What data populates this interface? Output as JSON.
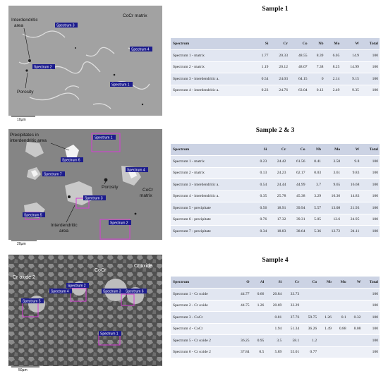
{
  "samples": [
    {
      "title": "Sample 1",
      "columns": [
        "Spectrum",
        "Si",
        "Cr",
        "Co",
        "Nb",
        "Mo",
        "W",
        "Total"
      ],
      "rows": [
        [
          "Spectrum 1 - matrix",
          "1.77",
          "20.33",
          "48.55",
          "8.39",
          "6.05",
          "14.9",
          "100"
        ],
        [
          "Spectrum 2 - matrix",
          "1.19",
          "20.12",
          "48.07",
          "7.38",
          "8.25",
          "14.99",
          "100"
        ],
        [
          "Spectrum 3 - interdendritic a.",
          "0.54",
          "24.03",
          "64.15",
          "0",
          "2.14",
          "9.15",
          "100"
        ],
        [
          "Spectrum 4 - interdendritic a.",
          "0.23",
          "24.76",
          "63.04",
          "0.12",
          "2.49",
          "9.35",
          "100"
        ]
      ],
      "image": {
        "labels": [
          "Interdendritic",
          "area",
          "Porosity",
          "CoCr matrix"
        ],
        "spectra": [
          "Spectrum 3",
          "Spectrum 2",
          "Spectrum 4",
          "Spectrum 1"
        ],
        "scale": "10µm"
      }
    },
    {
      "title": "Sample 2 & 3",
      "columns": [
        "Spectrum",
        "Si",
        "Cr",
        "Co",
        "Nb",
        "Mo",
        "W",
        "Total"
      ],
      "rows": [
        [
          "Spectrum 1 - matrix",
          "0.23",
          "24.42",
          "61.56",
          "0.41",
          "3.58",
          "9.8",
          "100"
        ],
        [
          "Spectrum 2 - matrix",
          "0.13",
          "24.23",
          "62.17",
          "0.03",
          "3.61",
          "9.83",
          "100"
        ],
        [
          "Spectrum 3 - interdendritic a.",
          "0.54",
          "24.44",
          "44.99",
          "3.7",
          "9.65",
          "16.68",
          "100"
        ],
        [
          "Spectrum 4 - interdendritic a.",
          "0.35",
          "25.78",
          "45.38",
          "3.29",
          "10.36",
          "14.83",
          "100"
        ],
        [
          "Spectrum 5 - precipitate",
          "0.56",
          "18.91",
          "39.94",
          "5.57",
          "13.08",
          "21.93",
          "100"
        ],
        [
          "Spectrum 6 - precipitate",
          "0.76",
          "17.32",
          "39.31",
          "5.05",
          "12.6",
          "24.95",
          "100"
        ],
        [
          "Spectrum 7 - precipitate",
          "0.34",
          "18.83",
          "38.64",
          "5.36",
          "12.72",
          "24.11",
          "100"
        ]
      ],
      "image": {
        "labels": [
          "Precipitates in",
          "interdendritic area",
          "Porosity",
          "CoCr",
          "matrix",
          "Interdendritic",
          "area"
        ],
        "spectra": [
          "Spectrum 1",
          "Spectrum 6",
          "Spectrum 7",
          "Spectrum 4",
          "Spectrum 3",
          "Spectrum 5",
          "Spectrum 2"
        ],
        "scale": "20µm"
      }
    },
    {
      "title": "Sample 4",
      "columns": [
        "Spectrum",
        "O",
        "Al",
        "Si",
        "Cr",
        "Co",
        "Nb",
        "Mo",
        "W",
        "Total"
      ],
      "rows": [
        [
          "Spectrum 1 - Cr oxide",
          "44.77",
          "0.66",
          "20.84",
          "33.73",
          "",
          "",
          "",
          "",
          "100"
        ],
        [
          "Spectrum 2 - Cr oxide",
          "44.75",
          "1.26",
          "20.69",
          "33.29",
          "",
          "",
          "",
          "",
          "100"
        ],
        [
          "Spectrum 3 - CoCr",
          "",
          "",
          "0.81",
          "37.76",
          "59.75",
          "1.26",
          "0.1",
          "0.32",
          "100"
        ],
        [
          "Spectrum 4 - CoCr",
          "",
          "",
          "1.94",
          "51.34",
          "36.26",
          "1.49",
          "0.88",
          "8.08",
          "100"
        ],
        [
          "Spectrum 5 - Cr oxide 2",
          "36.25",
          "0.95",
          "3.5",
          "58.1",
          "1.2",
          "",
          "",
          "",
          "100"
        ],
        [
          "Spectrum 6 - Cr oxide 2",
          "37.84",
          "0.5",
          "5.89",
          "55.01",
          "0.77",
          "",
          "",
          "",
          "100"
        ]
      ],
      "image": {
        "labels": [
          "Cr oxide 2",
          "CoCr",
          "Cr oxide"
        ],
        "spectra": [
          "Spectrum 4",
          "Spectrum 2",
          "Spectrum 3",
          "Spectrum 6",
          "Spectrum 5",
          "Spectrum 1"
        ],
        "scale": "50µm"
      }
    }
  ],
  "colors": {
    "table_header": "#ccd3e4",
    "row_light": "#edf0f7",
    "row_dark": "#e1e6f1",
    "spectrum_box": "#d63bd6",
    "spectrum_tag": "#1c1c8c"
  }
}
